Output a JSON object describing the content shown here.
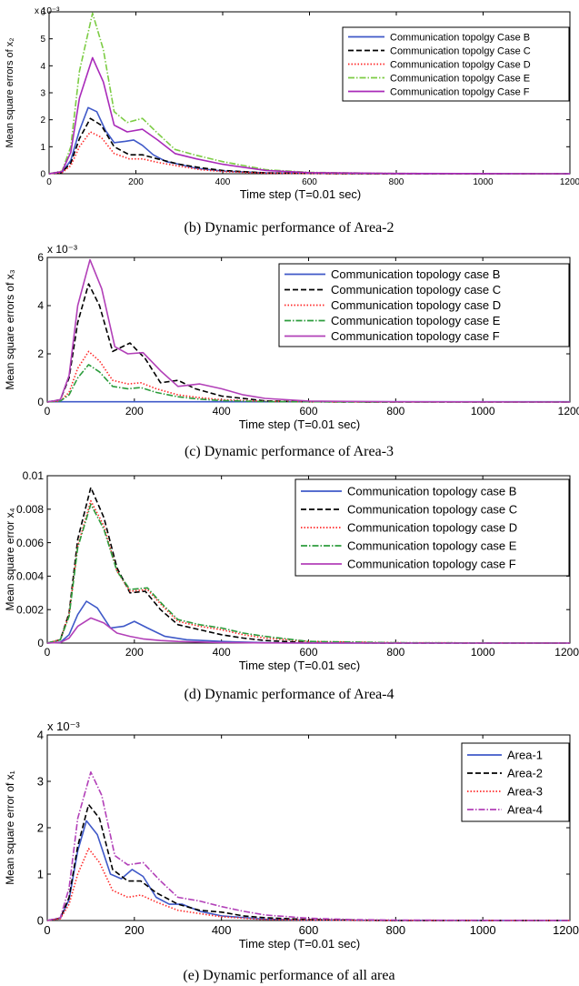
{
  "colors": {
    "blue": "#3f59c8",
    "black": "#000000",
    "red": "#ff2a2a",
    "green": "#2c9c3c",
    "magenta": "#a92ab9",
    "purple": "#b240b8",
    "lightgreen": "#7ccc44"
  },
  "chart_data": [
    {
      "type": "line",
      "caption": "(b) Dynamic performance of Area-2",
      "xlabel": "Time step (T=0.01 sec)",
      "ylabel": "Mean square errors of x₂",
      "exponent": "x 10⁻³",
      "xlim": [
        0,
        1200
      ],
      "ylim": [
        0,
        6
      ],
      "xticks": [
        "0",
        "200",
        "400",
        "600",
        "800",
        "1000",
        "1200"
      ],
      "yticks": [
        "0",
        "1",
        "2",
        "3",
        "4",
        "5",
        "6"
      ],
      "legend_position": "top-right",
      "series": [
        {
          "name": "Communication topolgy Case B",
          "color_key": "blue",
          "dash": "solid",
          "x": [
            0,
            30,
            50,
            70,
            90,
            110,
            130,
            150,
            175,
            195,
            215,
            240,
            270,
            300,
            340,
            400,
            500,
            600,
            800,
            1200
          ],
          "y": [
            0,
            0.05,
            0.5,
            1.6,
            2.45,
            2.3,
            1.6,
            1.15,
            1.2,
            1.25,
            1.05,
            0.7,
            0.45,
            0.35,
            0.2,
            0.1,
            0.03,
            0.01,
            0,
            0
          ]
        },
        {
          "name": "Communication topolgy Case C",
          "color_key": "black",
          "dash": "dashed",
          "x": [
            0,
            30,
            50,
            70,
            95,
            120,
            150,
            185,
            215,
            250,
            300,
            350,
            400,
            500,
            600,
            800,
            1200
          ],
          "y": [
            0,
            0.05,
            0.4,
            1.3,
            2.05,
            1.8,
            1.0,
            0.7,
            0.7,
            0.55,
            0.35,
            0.22,
            0.12,
            0.03,
            0.01,
            0,
            0
          ]
        },
        {
          "name": "Communication topolgy Case D",
          "color_key": "red",
          "dash": "dotted",
          "x": [
            0,
            30,
            50,
            70,
            95,
            120,
            150,
            185,
            215,
            250,
            300,
            350,
            400,
            500,
            600,
            800,
            1200
          ],
          "y": [
            0,
            0.04,
            0.3,
            1.0,
            1.55,
            1.35,
            0.75,
            0.55,
            0.55,
            0.42,
            0.28,
            0.15,
            0.08,
            0.02,
            0.01,
            0,
            0
          ]
        },
        {
          "name": "Communication topolgy Case E",
          "color_key": "lightgreen",
          "dash": "dashdot",
          "x": [
            0,
            30,
            50,
            70,
            100,
            125,
            150,
            180,
            215,
            250,
            290,
            340,
            400,
            500,
            600,
            800,
            1200
          ],
          "y": [
            0,
            0.1,
            1.0,
            3.8,
            5.95,
            4.6,
            2.3,
            1.9,
            2.05,
            1.5,
            0.9,
            0.68,
            0.45,
            0.15,
            0.05,
            0.01,
            0
          ]
        },
        {
          "name": "Communication topolgy Case F",
          "color_key": "magenta",
          "dash": "solid",
          "x": [
            0,
            30,
            50,
            70,
            100,
            125,
            150,
            180,
            215,
            250,
            290,
            340,
            400,
            500,
            600,
            800,
            1200
          ],
          "y": [
            0,
            0.08,
            0.8,
            2.8,
            4.3,
            3.4,
            1.8,
            1.55,
            1.65,
            1.25,
            0.75,
            0.55,
            0.35,
            0.12,
            0.04,
            0.01,
            0
          ]
        }
      ]
    },
    {
      "type": "line",
      "caption": "(c) Dynamic performance of Area-3",
      "xlabel": "Time step (T=0.01 sec)",
      "ylabel": "Mean square errors of x₃",
      "exponent": "x 10⁻³",
      "xlim": [
        0,
        1200
      ],
      "ylim": [
        0,
        6
      ],
      "xticks": [
        "0",
        "200",
        "400",
        "600",
        "800",
        "1000",
        "1200"
      ],
      "yticks": [
        "0",
        "2",
        "4",
        "6"
      ],
      "legend_position": "top-right",
      "series": [
        {
          "name": "Communication topology case B",
          "color_key": "blue",
          "dash": "solid",
          "x": [
            0,
            1200
          ],
          "y": [
            0.01,
            0.01
          ]
        },
        {
          "name": "Communication topology case C",
          "color_key": "black",
          "dash": "dashed",
          "x": [
            0,
            30,
            50,
            70,
            95,
            120,
            150,
            190,
            225,
            260,
            300,
            340,
            400,
            500,
            600,
            800,
            1200
          ],
          "y": [
            0,
            0.1,
            1.0,
            3.3,
            4.9,
            4.0,
            2.1,
            2.45,
            1.8,
            0.8,
            0.9,
            0.55,
            0.25,
            0.05,
            0.01,
            0,
            0
          ]
        },
        {
          "name": "Communication topology case D",
          "color_key": "red",
          "dash": "dotted",
          "x": [
            0,
            30,
            50,
            70,
            95,
            120,
            150,
            185,
            215,
            250,
            300,
            350,
            400,
            500,
            600,
            800,
            1200
          ],
          "y": [
            0,
            0.05,
            0.4,
            1.4,
            2.1,
            1.7,
            0.9,
            0.75,
            0.8,
            0.55,
            0.3,
            0.18,
            0.1,
            0.03,
            0.01,
            0,
            0
          ]
        },
        {
          "name": "Communication topology case E",
          "color_key": "green",
          "dash": "dashdot",
          "x": [
            0,
            30,
            50,
            70,
            95,
            120,
            150,
            185,
            215,
            250,
            300,
            350,
            400,
            500,
            600,
            800,
            1200
          ],
          "y": [
            0,
            0.04,
            0.3,
            1.0,
            1.55,
            1.25,
            0.65,
            0.55,
            0.6,
            0.4,
            0.22,
            0.12,
            0.06,
            0.02,
            0.01,
            0,
            0
          ]
        },
        {
          "name": "Communication topology case F",
          "color_key": "purple",
          "dash": "solid",
          "x": [
            0,
            30,
            50,
            70,
            98,
            125,
            155,
            185,
            220,
            260,
            300,
            350,
            400,
            450,
            500,
            600,
            800,
            1200
          ],
          "y": [
            0,
            0.1,
            1.1,
            4.0,
            5.9,
            4.7,
            2.3,
            2.0,
            2.05,
            1.3,
            0.65,
            0.75,
            0.55,
            0.3,
            0.15,
            0.04,
            0.01,
            0
          ]
        }
      ]
    },
    {
      "type": "line",
      "caption": "(d) Dynamic performance of Area-4",
      "xlabel": "Time step (T=0.01 sec)",
      "ylabel": "Mean square error x₄",
      "exponent": "",
      "xlim": [
        0,
        1200
      ],
      "ylim": [
        0,
        0.01
      ],
      "xticks": [
        "0",
        "200",
        "400",
        "600",
        "800",
        "1000",
        "1200"
      ],
      "yticks": [
        "0",
        "0.002",
        "0.004",
        "0.006",
        "0.008",
        "0.01"
      ],
      "legend_position": "top-right",
      "series": [
        {
          "name": "Communication topology case B",
          "color_key": "blue",
          "dash": "solid",
          "x": [
            0,
            30,
            50,
            70,
            90,
            115,
            145,
            175,
            200,
            230,
            270,
            320,
            400,
            500,
            600,
            800,
            1200
          ],
          "y": [
            0,
            5e-05,
            0.0005,
            0.0017,
            0.0025,
            0.0021,
            0.0009,
            0.001,
            0.0013,
            0.0009,
            0.0004,
            0.0002,
            0.0001,
            2e-05,
            0,
            0,
            0
          ]
        },
        {
          "name": "Communication topology case C",
          "color_key": "black",
          "dash": "dashed",
          "x": [
            0,
            30,
            50,
            70,
            100,
            130,
            160,
            190,
            225,
            260,
            300,
            350,
            400,
            450,
            500,
            600,
            800,
            1200
          ],
          "y": [
            0,
            0.0002,
            0.0018,
            0.0062,
            0.0093,
            0.0075,
            0.0045,
            0.003,
            0.0031,
            0.002,
            0.0011,
            0.0008,
            0.0005,
            0.0003,
            0.00015,
            3e-05,
            0,
            0
          ]
        },
        {
          "name": "Communication topology case D",
          "color_key": "red",
          "dash": "dotted",
          "x": [
            0,
            30,
            50,
            70,
            100,
            130,
            160,
            190,
            230,
            265,
            300,
            350,
            400,
            450,
            500,
            600,
            800,
            1200
          ],
          "y": [
            0,
            0.0002,
            0.0017,
            0.0058,
            0.0085,
            0.007,
            0.0043,
            0.0031,
            0.0032,
            0.0022,
            0.0013,
            0.001,
            0.0008,
            0.0005,
            0.0003,
            0.0001,
            2e-05,
            0
          ]
        },
        {
          "name": "Communication topology case E",
          "color_key": "green",
          "dash": "dashdot",
          "x": [
            0,
            30,
            50,
            70,
            100,
            130,
            160,
            190,
            230,
            265,
            300,
            350,
            400,
            450,
            500,
            600,
            800,
            1200
          ],
          "y": [
            0,
            0.0002,
            0.0016,
            0.0057,
            0.0083,
            0.0068,
            0.0043,
            0.0032,
            0.0033,
            0.0023,
            0.0014,
            0.0011,
            0.0009,
            0.0006,
            0.0004,
            0.0001,
            2e-05,
            0
          ]
        },
        {
          "name": "Communication topology case F",
          "color_key": "purple",
          "dash": "solid",
          "x": [
            0,
            30,
            50,
            70,
            100,
            130,
            160,
            190,
            220,
            260,
            300,
            400,
            500,
            800,
            1200
          ],
          "y": [
            0,
            3e-05,
            0.0003,
            0.001,
            0.0015,
            0.0012,
            0.0006,
            0.0004,
            0.00025,
            0.00015,
            0.0001,
            3e-05,
            1e-05,
            0,
            0
          ]
        }
      ]
    },
    {
      "type": "line",
      "caption": "(e)      Dynamic performance of all area",
      "xlabel": "Time step (T=0.01 sec)",
      "ylabel": "Mean square error of x₁",
      "exponent": "x 10⁻³",
      "xlim": [
        0,
        1200
      ],
      "ylim": [
        0,
        4
      ],
      "xticks": [
        "0",
        "200",
        "400",
        "600",
        "800",
        "1000",
        "1200"
      ],
      "yticks": [
        "0",
        "1",
        "2",
        "3",
        "4"
      ],
      "legend_position": "top-right",
      "series": [
        {
          "name": "Area-1",
          "color_key": "blue",
          "dash": "solid",
          "x": [
            0,
            30,
            50,
            70,
            90,
            115,
            145,
            170,
            195,
            220,
            250,
            280,
            310,
            350,
            400,
            500,
            600,
            800,
            1200
          ],
          "y": [
            0,
            0.05,
            0.45,
            1.5,
            2.15,
            1.85,
            1.0,
            0.9,
            1.1,
            0.95,
            0.5,
            0.35,
            0.35,
            0.2,
            0.1,
            0.03,
            0.01,
            0,
            0
          ]
        },
        {
          "name": "Area-2",
          "color_key": "black",
          "dash": "dashed",
          "x": [
            0,
            30,
            50,
            70,
            95,
            120,
            150,
            185,
            215,
            250,
            300,
            350,
            400,
            450,
            500,
            600,
            800,
            1200
          ],
          "y": [
            0,
            0.05,
            0.5,
            1.6,
            2.5,
            2.2,
            1.1,
            0.85,
            0.85,
            0.6,
            0.35,
            0.22,
            0.18,
            0.1,
            0.06,
            0.02,
            0,
            0
          ]
        },
        {
          "name": "Area-3",
          "color_key": "red",
          "dash": "dotted",
          "x": [
            0,
            30,
            50,
            70,
            95,
            120,
            150,
            185,
            215,
            250,
            300,
            350,
            400,
            500,
            600,
            800,
            1200
          ],
          "y": [
            0,
            0.04,
            0.35,
            1.0,
            1.55,
            1.25,
            0.65,
            0.5,
            0.55,
            0.4,
            0.22,
            0.15,
            0.08,
            0.02,
            0.01,
            0,
            0
          ]
        },
        {
          "name": "Area-4",
          "color_key": "purple",
          "dash": "dashdot",
          "x": [
            0,
            30,
            50,
            70,
            100,
            125,
            155,
            185,
            220,
            260,
            300,
            350,
            400,
            450,
            500,
            600,
            700,
            800,
            1200
          ],
          "y": [
            0,
            0.06,
            0.7,
            2.2,
            3.2,
            2.7,
            1.4,
            1.2,
            1.25,
            0.85,
            0.5,
            0.42,
            0.3,
            0.2,
            0.12,
            0.05,
            0.02,
            0.01,
            0
          ]
        }
      ]
    }
  ]
}
